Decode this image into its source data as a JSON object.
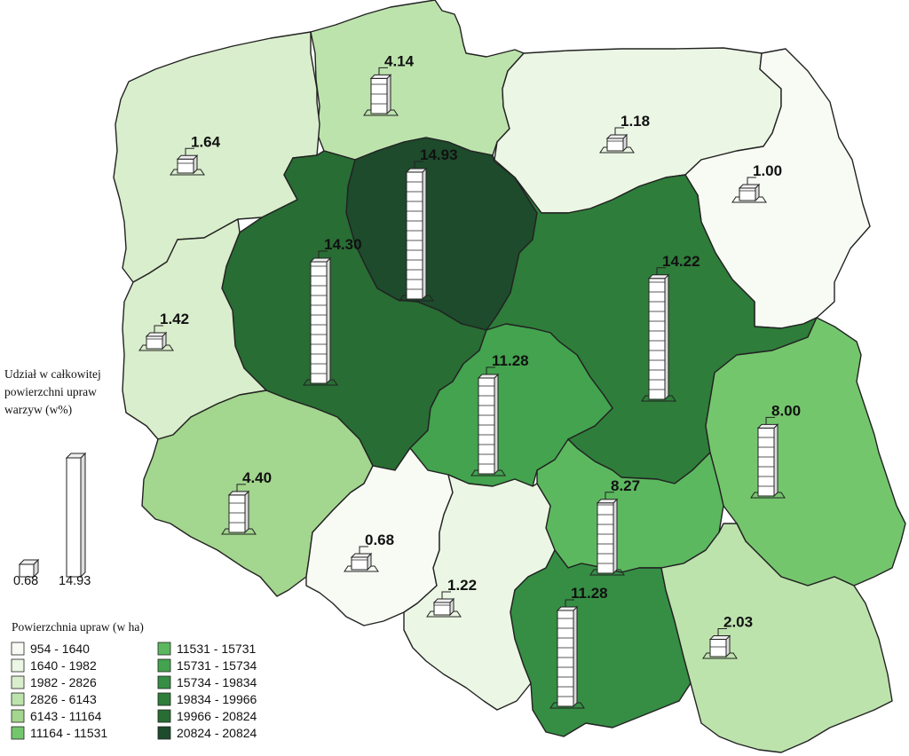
{
  "bar_legend": {
    "title_lines": [
      "Udział w całkowitej",
      "powierzchni upraw",
      "warzyw (w%)"
    ],
    "min_label": "0.68",
    "max_label": "14.93",
    "min_value": 0.68,
    "max_value": 14.93
  },
  "area_legend": {
    "title": "Powierzchnia upraw (w ha)",
    "classes": [
      {
        "label": "954 - 1640",
        "color": "#f7fbf4"
      },
      {
        "label": "1640 - 1982",
        "color": "#ebf6e4"
      },
      {
        "label": "1982 - 2826",
        "color": "#d9eecc"
      },
      {
        "label": "2826 - 6143",
        "color": "#bde3ad"
      },
      {
        "label": "6143 - 11164",
        "color": "#a3d68e"
      },
      {
        "label": "11164 - 11531",
        "color": "#74c66d"
      },
      {
        "label": "11531 - 15731",
        "color": "#5cb85f"
      },
      {
        "label": "15731 - 15734",
        "color": "#43a34e"
      },
      {
        "label": "15734 - 19834",
        "color": "#358e44"
      },
      {
        "label": "19834 - 19966",
        "color": "#2e7d3a"
      },
      {
        "label": "19966 - 20824",
        "color": "#286d34"
      },
      {
        "label": "20824 - 20824",
        "color": "#1d4b2c"
      }
    ]
  },
  "regions": [
    {
      "id": "pomorskie",
      "value": 4.14,
      "label": "4.14",
      "color": "#bde3ad"
    },
    {
      "id": "zachodniopomorskie",
      "value": 1.64,
      "label": "1.64",
      "color": "#d9eecc"
    },
    {
      "id": "warminsko-mazurskie",
      "value": 1.18,
      "label": "1.18",
      "color": "#ebf6e4"
    },
    {
      "id": "podlaskie",
      "value": 1.0,
      "label": "1.00",
      "color": "#f7fbf4"
    },
    {
      "id": "kujawsko-pomorskie",
      "value": 14.93,
      "label": "14.93",
      "color": "#1d4b2c"
    },
    {
      "id": "wielkopolskie",
      "value": 14.3,
      "label": "14.30",
      "color": "#286d34"
    },
    {
      "id": "lubuskie",
      "value": 1.42,
      "label": "1.42",
      "color": "#d9eecc"
    },
    {
      "id": "mazowieckie",
      "value": 14.22,
      "label": "14.22",
      "color": "#2e7d3a"
    },
    {
      "id": "lodzkie",
      "value": 11.28,
      "label": "11.28",
      "color": "#43a34e"
    },
    {
      "id": "lubelskie",
      "value": 8.0,
      "label": "8.00",
      "color": "#74c66d"
    },
    {
      "id": "dolnoslaskie",
      "value": 4.4,
      "label": "4.40",
      "color": "#a3d68e"
    },
    {
      "id": "swietokrzyskie",
      "value": 8.27,
      "label": "8.27",
      "color": "#5cb85f"
    },
    {
      "id": "opolskie",
      "value": 0.68,
      "label": "0.68",
      "color": "#f7fbf4"
    },
    {
      "id": "slaskie",
      "value": 1.22,
      "label": "1.22",
      "color": "#ebf6e4"
    },
    {
      "id": "malopolskie",
      "value": 11.28,
      "label": "11.28",
      "color": "#358e44"
    },
    {
      "id": "podkarpackie",
      "value": 2.03,
      "label": "2.03",
      "color": "#bde3ad"
    }
  ]
}
